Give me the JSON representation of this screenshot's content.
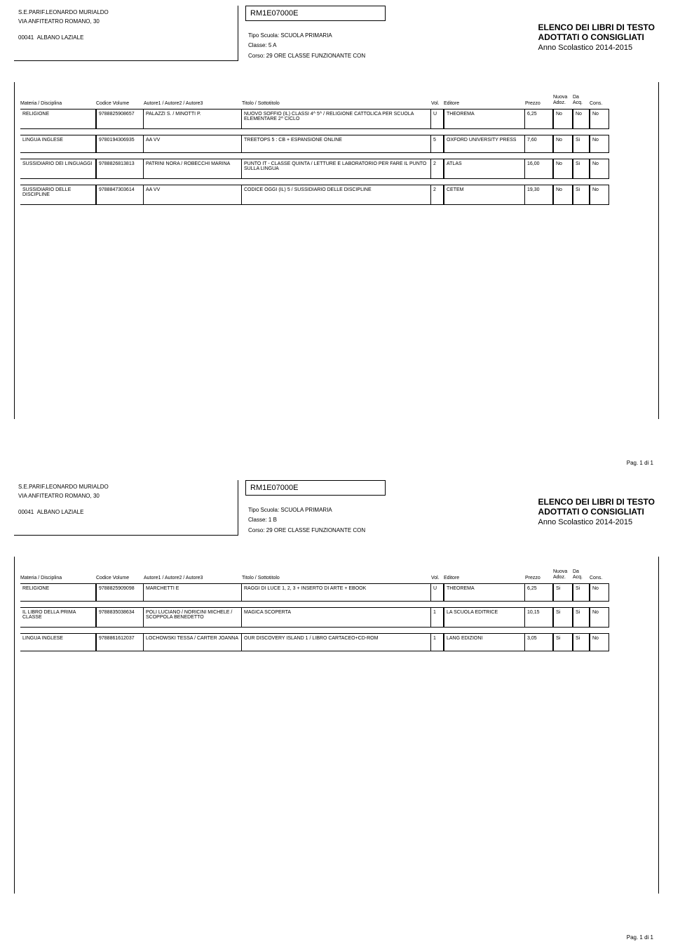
{
  "pages": [
    {
      "school": {
        "name": "S.E.PARIF.LEONARDO MURIALDO",
        "address": "VIA ANFITEATRO ROMANO, 30",
        "postal": "00041",
        "city": "ALBANO LAZIALE"
      },
      "code": "RM1E07000E",
      "info": {
        "tipo_label": "Tipo Scuola:",
        "tipo_value": "SCUOLA PRIMARIA",
        "classe_label": "Classe:",
        "classe_value": "5 A",
        "corso_label": "Corso:",
        "corso_value": "29 ORE CLASSE FUNZIONANTE CON"
      },
      "title": {
        "line1": "ELENCO DEI LIBRI DI TESTO",
        "line2": "ADOTTATI O CONSIGLIATI",
        "year": "Anno Scolastico 2014-2015"
      },
      "headers": {
        "materia": "Materia / Disciplina",
        "codice": "Codice Volume",
        "autore": "Autore1 / Autore2 / Autore3",
        "titolo": "Titolo / Sottotitolo",
        "vol": "Vol.",
        "editore": "Editore",
        "prezzo": "Prezzo",
        "nuova1": "Nuova",
        "nuova2": "Adoz.",
        "daacq1": "Da",
        "daacq2": "Acq.",
        "cons": "Cons."
      },
      "rows": [
        {
          "materia": "RELIGIONE",
          "codice": "9788825908657",
          "autore": "PALAZZI S. / MINOTTI P.",
          "titolo": "NUOVO SOFFIO (IL) CLASSI 4^ 5^ / RELIGIONE CATTOLICA PER SCUOLA ELEMENTARE 2^ CICLO",
          "vol": "U",
          "editore": "THEOREMA",
          "prezzo": "6,25",
          "nuova": "No",
          "daacq": "No",
          "cons": "No"
        },
        {
          "materia": "LINGUA INGLESE",
          "codice": "9780194306935",
          "autore": "AA VV",
          "titolo": "TREETOPS 5 : CB + ESPANSIONE ONLINE",
          "vol": "5",
          "editore": "OXFORD UNIVERSITY PRESS",
          "prezzo": "7,60",
          "nuova": "No",
          "daacq": "Si",
          "cons": "No"
        },
        {
          "materia": "SUSSIDIARIO DEI LINGUAGGI",
          "codice": "9788826813813",
          "autore": "PATRINI NORA / ROBECCHI MARINA",
          "titolo": "PUNTO IT - CLASSE QUINTA / LETTURE E LABORATORIO PER FARE IL PUNTO SULLA LINGUA",
          "vol": "2",
          "editore": "ATLAS",
          "prezzo": "16,00",
          "nuova": "No",
          "daacq": "Si",
          "cons": "No"
        },
        {
          "materia": "SUSSIDIARIO DELLE DISCIPLINE",
          "codice": "9788847303614",
          "autore": "AA VV",
          "titolo": "CODICE OGGI (IL) 5 / SUSSIDIARIO DELLE DISCIPLINE",
          "vol": "2",
          "editore": "CETEM",
          "prezzo": "19,30",
          "nuova": "No",
          "daacq": "Si",
          "cons": "No"
        }
      ],
      "pagenum": "Pag. 1 di 1"
    },
    {
      "school": {
        "name": "S.E.PARIF.LEONARDO MURIALDO",
        "address": "VIA ANFITEATRO ROMANO, 30",
        "postal": "00041",
        "city": "ALBANO LAZIALE"
      },
      "code": "RM1E07000E",
      "info": {
        "tipo_label": "Tipo Scuola:",
        "tipo_value": "SCUOLA PRIMARIA",
        "classe_label": "Classe:",
        "classe_value": "1 B",
        "corso_label": "Corso:",
        "corso_value": "29 ORE CLASSE FUNZIONANTE CON"
      },
      "title": {
        "line1": "ELENCO DEI LIBRI DI TESTO",
        "line2": "ADOTTATI O CONSIGLIATI",
        "year": "Anno Scolastico 2014-2015"
      },
      "headers": {
        "materia": "Materia / Disciplina",
        "codice": "Codice Volume",
        "autore": "Autore1 / Autore2 / Autore3",
        "titolo": "Titolo / Sottotitolo",
        "vol": "Vol.",
        "editore": "Editore",
        "prezzo": "Prezzo",
        "nuova1": "Nuova",
        "nuova2": "Adoz.",
        "daacq1": "Da",
        "daacq2": "Acq.",
        "cons": "Cons."
      },
      "rows": [
        {
          "materia": "RELIGIONE",
          "codice": "9788825909098",
          "autore": "MARCHETTI E",
          "titolo": "RAGGI DI LUCE 1, 2, 3 + INSERTO DI ARTE + EBOOK",
          "vol": "U",
          "editore": "THEOREMA",
          "prezzo": "6,25",
          "nuova": "Si",
          "daacq": "Si",
          "cons": "No"
        },
        {
          "materia": "IL LIBRO DELLA PRIMA CLASSE",
          "codice": "9788835038634",
          "autore": "POLI LUCIANO / NORICINI MICHELE / SCOPPOLA BENEDETTO",
          "titolo": "MAGICA SCOPERTA",
          "vol": "1",
          "editore": "LA SCUOLA EDITRICE",
          "prezzo": "10,15",
          "nuova": "Si",
          "daacq": "Si",
          "cons": "No"
        },
        {
          "materia": "LINGUA INGLESE",
          "codice": "9788861612037",
          "autore": "LOCHOWSKI TESSA / CARTER JOANNA",
          "titolo": "OUR DISCOVERY ISLAND 1 / LIBRO CARTACEO+CD-ROM",
          "vol": "1",
          "editore": "LANG EDIZIONI",
          "prezzo": "3,05",
          "nuova": "Si",
          "daacq": "Si",
          "cons": "No"
        }
      ],
      "pagenum": "Pag. 1 di 1"
    }
  ]
}
